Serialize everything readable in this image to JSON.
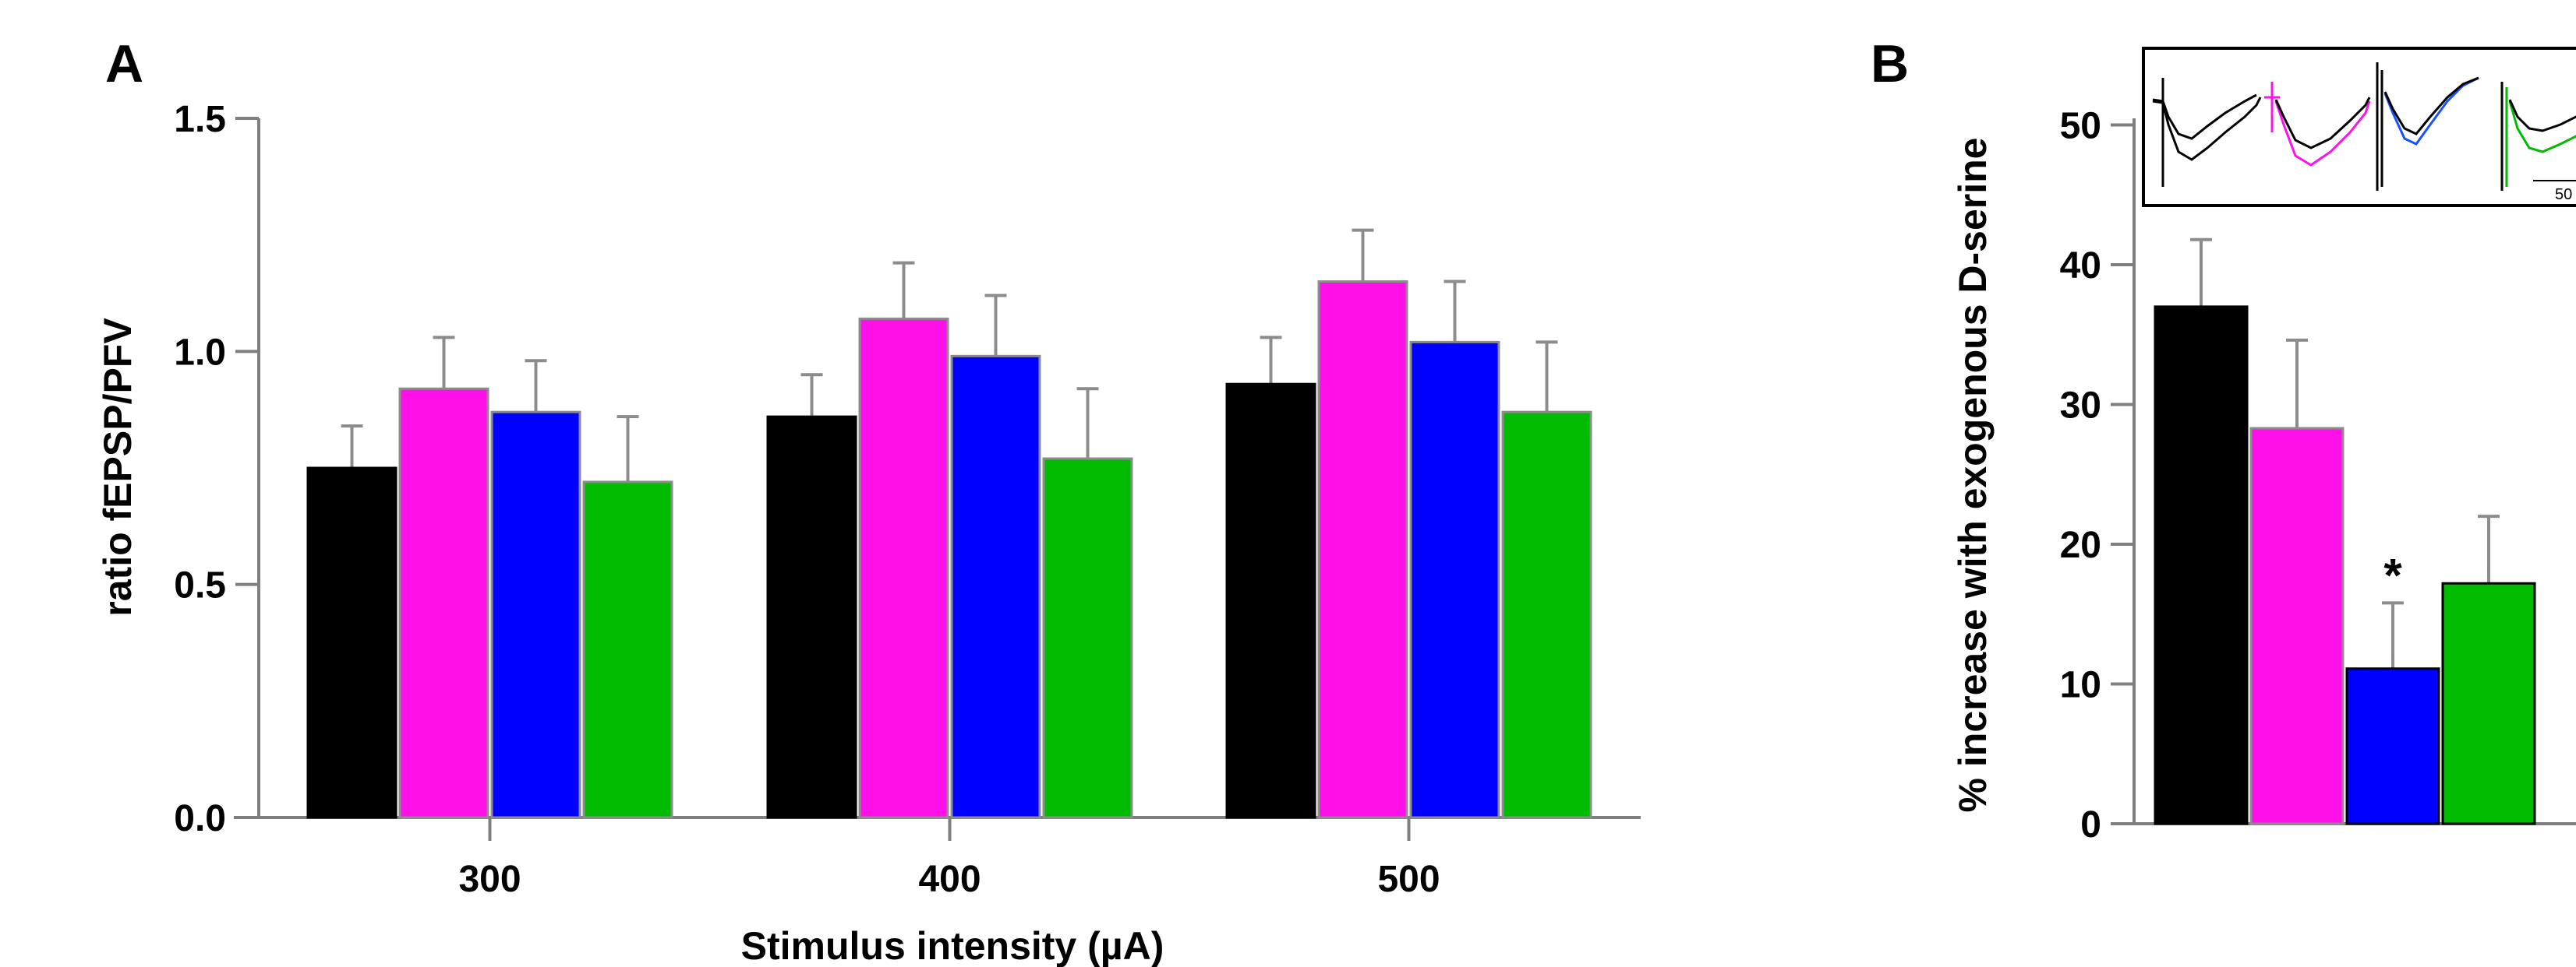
{
  "colors": [
    "#000000",
    "#ff10e8",
    "#0000ff",
    "#00bb00"
  ],
  "chart_data": [
    {
      "panel": "A",
      "type": "bar",
      "xlabel": "Stimulus intensity (µA)",
      "ylabel": "ratio fEPSP/PFV",
      "categories": [
        "300",
        "400",
        "500"
      ],
      "ylim": [
        0,
        1.5
      ],
      "yticks": [
        "0.0",
        "0.5",
        "1.0",
        "1.5"
      ],
      "yticks_values": [
        0,
        0.5,
        1.0,
        1.5
      ],
      "series": [
        {
          "values": [
            0.75,
            0.86,
            0.93
          ],
          "errors": [
            0.09,
            0.09,
            0.1
          ]
        },
        {
          "values": [
            0.92,
            1.07,
            1.15
          ],
          "errors": [
            0.11,
            0.12,
            0.11
          ]
        },
        {
          "values": [
            0.87,
            0.99,
            1.02
          ],
          "errors": [
            0.11,
            0.13,
            0.13
          ]
        },
        {
          "values": [
            0.72,
            0.77,
            0.87
          ],
          "errors": [
            0.14,
            0.15,
            0.15
          ]
        }
      ],
      "grid": false
    },
    {
      "panel": "B",
      "type": "bar",
      "xlabel": "",
      "ylabel": "% increase with exogenous D-serine",
      "ylim": [
        0,
        55
      ],
      "yticks": [
        "0",
        "10",
        "20",
        "30",
        "40",
        "50"
      ],
      "yticks_values": [
        0,
        10,
        20,
        30,
        40,
        50
      ],
      "values": [
        37,
        28.3,
        11.1,
        17.2
      ],
      "errors": [
        4.8,
        6.3,
        4.7,
        4.8
      ],
      "annotations": [
        {
          "bar_index": 2,
          "text": "*"
        }
      ],
      "inset_scale_label": "50",
      "grid": false
    }
  ]
}
